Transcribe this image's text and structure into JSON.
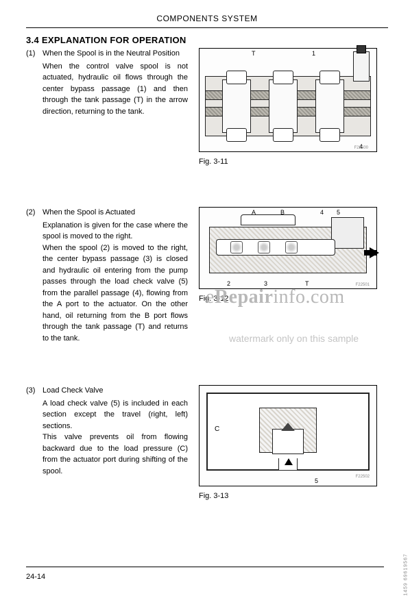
{
  "header": {
    "title": "COMPONENTS SYSTEM"
  },
  "section": {
    "number": "3.4",
    "heading": "EXPLANATION FOR OPERATION"
  },
  "items": [
    {
      "num": "(1)",
      "subtitle": "When the Spool is in the Neutral Position",
      "body": "When the control valve spool is not actuated, hydraulic oil flows through the center bypass passage (1) and then through the tank passage (T) in the arrow direction, returning to the tank.",
      "fig_labels": {
        "T": "T",
        "n1": "1",
        "n4": "4"
      },
      "fig_code": "F22500",
      "caption": "Fig. 3-11"
    },
    {
      "num": "(2)",
      "subtitle": "When the Spool is Actuated",
      "body": "Explanation is given for the case where the spool is moved to the right.\nWhen the spool (2) is moved to the right, the center bypass passage (3) is closed and hydraulic oil entering from the pump passes through the load check valve (5) from the parallel passage (4), flowing from the A port to the actuator. On the other hand, oil returning from the B port flows through the tank passage (T) and returns to the tank.",
      "fig_labels": {
        "A": "A",
        "B": "B",
        "n2": "2",
        "n3": "3",
        "T": "T",
        "n4": "4",
        "n5": "5"
      },
      "fig_code": "F22501",
      "caption": "Fig. 3-12"
    },
    {
      "num": "(3)",
      "subtitle": "Load Check Valve",
      "body": "A load check valve (5) is included in each section except the travel (right, left) sections.\nThis valve prevents oil from flowing backward due to the load pressure (C) from the actuator port during shifting of the spool.",
      "fig_labels": {
        "C": "C",
        "n5": "5"
      },
      "fig_code": "F22502",
      "caption": "Fig. 3-13"
    }
  ],
  "watermark": {
    "main_prefix": "e",
    "main_bold": "Repair",
    "main_suffix": "info.com",
    "sub": "watermark only on this sample"
  },
  "footer": {
    "page": "24-14",
    "side_code": "1459   69619567"
  }
}
